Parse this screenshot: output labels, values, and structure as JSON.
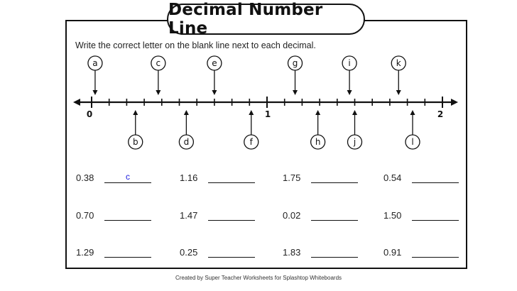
{
  "title": "Decimal Number Line",
  "instructions": "Write the correct letter on the blank line next to each decimal.",
  "number_line": {
    "labels": [
      "0",
      "1",
      "2"
    ],
    "min": 0,
    "max": 2,
    "tick_step": 0.1,
    "above": [
      {
        "letter": "a",
        "value": 0.02
      },
      {
        "letter": "c",
        "value": 0.38
      },
      {
        "letter": "e",
        "value": 0.7
      },
      {
        "letter": "g",
        "value": 1.16
      },
      {
        "letter": "i",
        "value": 1.47
      },
      {
        "letter": "k",
        "value": 1.75
      }
    ],
    "below": [
      {
        "letter": "b",
        "value": 0.25
      },
      {
        "letter": "d",
        "value": 0.54
      },
      {
        "letter": "f",
        "value": 0.91
      },
      {
        "letter": "h",
        "value": 1.29
      },
      {
        "letter": "j",
        "value": 1.5
      },
      {
        "letter": "l",
        "value": 1.83
      }
    ]
  },
  "questions": [
    {
      "decimal": "0.38",
      "answer": "c"
    },
    {
      "decimal": "1.16",
      "answer": ""
    },
    {
      "decimal": "1.75",
      "answer": ""
    },
    {
      "decimal": "0.54",
      "answer": ""
    },
    {
      "decimal": "0.70",
      "answer": ""
    },
    {
      "decimal": "1.47",
      "answer": ""
    },
    {
      "decimal": "0.02",
      "answer": ""
    },
    {
      "decimal": "1.50",
      "answer": ""
    },
    {
      "decimal": "1.29",
      "answer": ""
    },
    {
      "decimal": "0.25",
      "answer": ""
    },
    {
      "decimal": "1.83",
      "answer": ""
    },
    {
      "decimal": "0.91",
      "answer": ""
    }
  ],
  "footer": "Created by Super Teacher Worksheets for Splashtop Whiteboards"
}
